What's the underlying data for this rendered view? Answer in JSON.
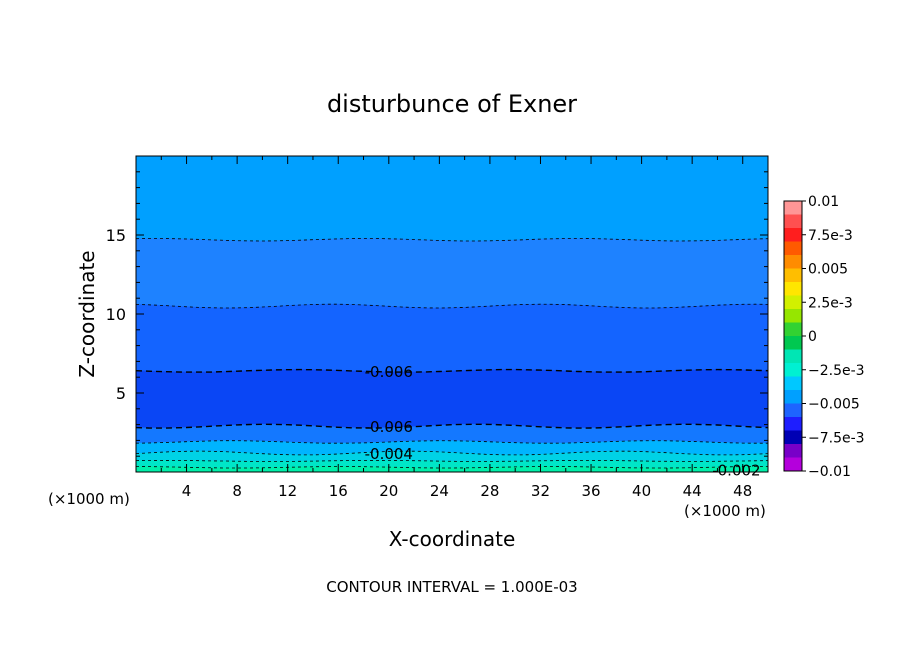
{
  "chart_data": {
    "type": "heatmap",
    "title": "disturbunce of Exner",
    "xlabel": "X-coordinate",
    "ylabel": "Z-coordinate",
    "x_unit": "(×1000 m)",
    "y_unit": "(×1000 m)",
    "xlim": [
      0,
      50
    ],
    "ylim": [
      0,
      20
    ],
    "x_ticks": [
      "4",
      "8",
      "12",
      "16",
      "20",
      "24",
      "28",
      "32",
      "36",
      "40",
      "44",
      "48"
    ],
    "y_ticks": [
      "5",
      "10",
      "15"
    ],
    "contour_labels": [
      "-0.006",
      "-0.006",
      "-0.004",
      "-0.002"
    ],
    "contour_interval_text": "CONTOUR INTERVAL = 1.000E-03",
    "bands": [
      {
        "z_bottom": 14.7,
        "z_top": 20,
        "value": -0.005,
        "color": "#00a0ff"
      },
      {
        "z_bottom": 10.5,
        "z_top": 14.7,
        "value": -0.006,
        "color": "#1e82ff"
      },
      {
        "z_bottom": 6.4,
        "z_top": 10.5,
        "value": -0.007,
        "color": "#1464ff"
      },
      {
        "z_bottom": 2.9,
        "z_top": 6.4,
        "value": -0.008,
        "color": "#0a46f5"
      },
      {
        "z_bottom": 1.9,
        "z_top": 2.9,
        "value": -0.007,
        "color": "#1478ff"
      },
      {
        "z_bottom": 1.2,
        "z_top": 1.9,
        "value": -0.005,
        "color": "#00b4ff"
      },
      {
        "z_bottom": 0.7,
        "z_top": 1.2,
        "value": -0.004,
        "color": "#00d2e6"
      },
      {
        "z_bottom": 0.3,
        "z_top": 0.7,
        "value": -0.003,
        "color": "#00e6c8"
      },
      {
        "z_bottom": 0,
        "z_top": 0.3,
        "value": -0.0025,
        "color": "#00f0aa"
      }
    ],
    "colorbar": {
      "labels": [
        "0.01",
        "7.5e-3",
        "0.005",
        "2.5e-3",
        "0",
        "−2.5e-3",
        "−0.005",
        "−7.5e-3",
        "−0.01"
      ],
      "colors_top_to_bottom": [
        "#ff9696",
        "#ff5050",
        "#ff1e1e",
        "#ff5a00",
        "#ff8c00",
        "#ffbe00",
        "#ffe600",
        "#d2f000",
        "#96e600",
        "#32d232",
        "#00c850",
        "#00e6b4",
        "#00f0d2",
        "#00c8ff",
        "#00a0ff",
        "#1e64ff",
        "#1e1eff",
        "#0000b4",
        "#7800c8",
        "#b400dc"
      ]
    }
  }
}
